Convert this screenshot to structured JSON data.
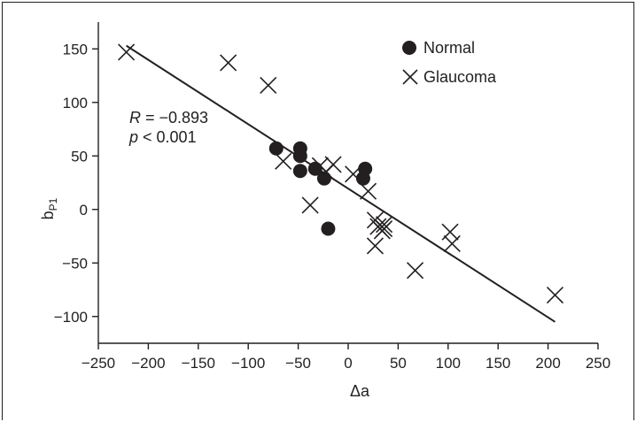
{
  "chart_data": {
    "type": "scatter",
    "title": "",
    "xlabel": "Δa",
    "ylabel": {
      "main": "b",
      "sub": "P1"
    },
    "xlim": [
      -250,
      250
    ],
    "ylim": [
      -125,
      175
    ],
    "xticks": [
      -250,
      -200,
      -150,
      -100,
      -50,
      0,
      50,
      100,
      150,
      200,
      250
    ],
    "yticks": [
      -100,
      -50,
      0,
      50,
      100,
      150
    ],
    "xtick_labels": [
      "−250",
      "−200",
      "−150",
      "−100",
      "−50",
      "0",
      "50",
      "100",
      "150",
      "200",
      "250"
    ],
    "ytick_labels": [
      "−100",
      "−50",
      "0",
      "50",
      "100",
      "150"
    ],
    "grid": false,
    "legend_position": "top-right",
    "series": [
      {
        "name": "Normal",
        "marker": "filled-circle",
        "color": "#231f20",
        "points": [
          [
            -72,
            57
          ],
          [
            -48,
            57
          ],
          [
            -48,
            50
          ],
          [
            -48,
            36
          ],
          [
            -33,
            38
          ],
          [
            -24,
            29
          ],
          [
            -20,
            -18
          ],
          [
            15,
            29
          ],
          [
            17,
            38
          ]
        ]
      },
      {
        "name": "Glaucoma",
        "marker": "x",
        "color": "#231f20",
        "points": [
          [
            -222,
            147
          ],
          [
            -120,
            137
          ],
          [
            -80,
            116
          ],
          [
            -65,
            45
          ],
          [
            -38,
            4
          ],
          [
            -28,
            41
          ],
          [
            -22,
            35
          ],
          [
            -15,
            42
          ],
          [
            5,
            33
          ],
          [
            20,
            17
          ],
          [
            27,
            -10
          ],
          [
            27,
            -34
          ],
          [
            30,
            -16
          ],
          [
            34,
            -20
          ],
          [
            36,
            -14
          ],
          [
            36,
            -18
          ],
          [
            67,
            -57
          ],
          [
            102,
            -21
          ],
          [
            104,
            -32
          ],
          [
            207,
            -80
          ]
        ]
      }
    ],
    "fit_line": {
      "x": [
        -222,
        207
      ],
      "y": [
        153,
        -105
      ]
    },
    "annotations": [
      {
        "label": "R",
        "text": " = −0.893"
      },
      {
        "label": "p",
        "text": " < 0.001"
      }
    ]
  }
}
